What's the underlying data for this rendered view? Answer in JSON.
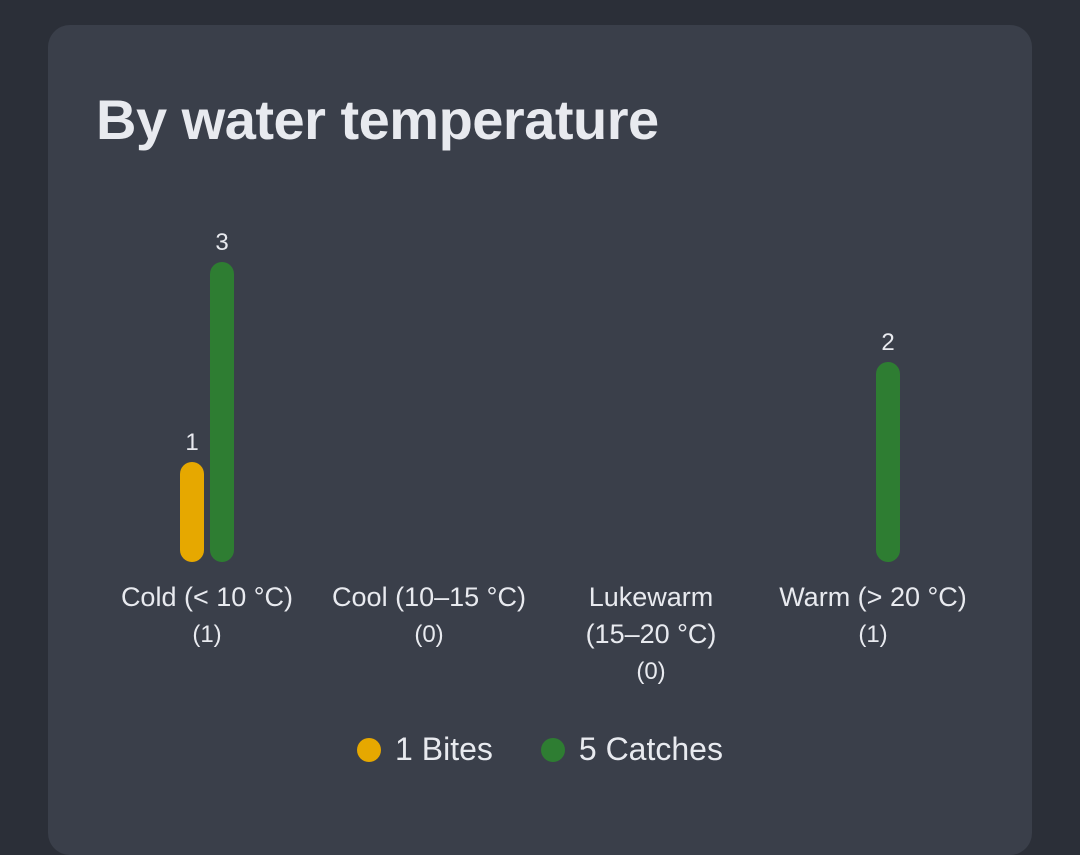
{
  "card": {
    "title": "By water temperature"
  },
  "colors": {
    "bites": "#e6a800",
    "catches": "#2e7d32",
    "card_bg": "#3a3f4a",
    "page_bg": "#2b2f38",
    "text": "#e8eaef"
  },
  "chart_data": {
    "type": "bar",
    "categories": [
      [
        "Cold (< 10 °C)"
      ],
      [
        "Cool (10–15 °C)"
      ],
      [
        "Lukewarm",
        "(15–20 °C)"
      ],
      [
        "Warm (> 20 °C)"
      ]
    ],
    "category_counts": [
      "(1)",
      "(0)",
      "(0)",
      "(1)"
    ],
    "series": [
      {
        "name": "Bites",
        "values": [
          1,
          0,
          0,
          0
        ]
      },
      {
        "name": "Catches",
        "values": [
          3,
          0,
          0,
          2
        ]
      }
    ],
    "ylim": [
      0,
      3
    ],
    "legend_position": "bottom-center",
    "grid": false
  },
  "legend": [
    {
      "label": "1 Bites"
    },
    {
      "label": "5 Catches"
    }
  ]
}
